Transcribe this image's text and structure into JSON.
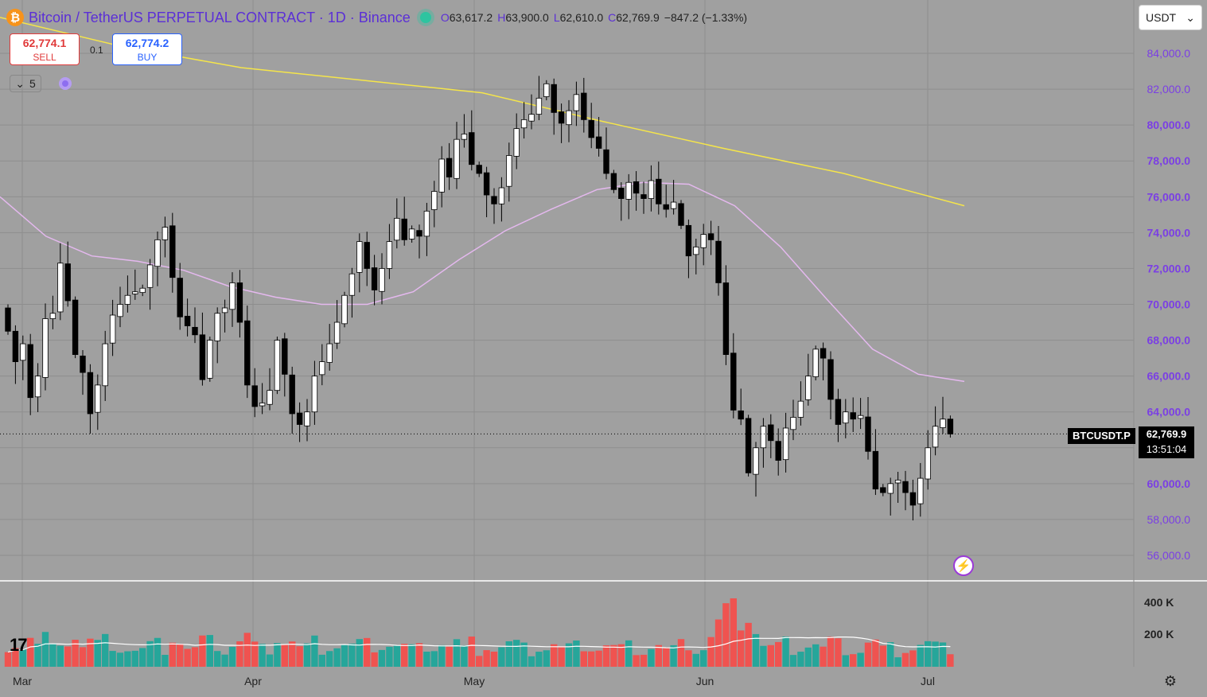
{
  "header": {
    "logo_glyph": "₿",
    "title": "Bitcoin / TetherUS PERPETUAL CONTRACT · 1D · Binance",
    "ohlc": {
      "o_label": "O",
      "o": "63,617.2",
      "h_label": "H",
      "h": "63,900.0",
      "l_label": "L",
      "l": "62,610.0",
      "c_label": "C",
      "c": "62,769.9",
      "change": "−847.2 (−1.33%)"
    }
  },
  "trade": {
    "sell_price": "62,774.1",
    "sell_label": "SELL",
    "spread": "0.1",
    "buy_price": "62,774.2",
    "buy_label": "BUY"
  },
  "indicators_toggle": {
    "chevron": "⌄",
    "count": "5"
  },
  "currency_select": {
    "value": "USDT",
    "chevron": "⌄"
  },
  "last_price": {
    "symbol": "BTCUSDT.P",
    "price": "62,769.9",
    "countdown": "13:51:04"
  },
  "flash_icon": "⚡",
  "logo": {
    "text": "17"
  },
  "settings_icon": "⚙",
  "colors": {
    "up": "#ffffff",
    "down": "#000000",
    "vol_up": "#26a69a",
    "vol_down": "#ef5350",
    "ma_long": "#f5e54a",
    "ma_mid": "#e4b8ee",
    "axis_text": "#7b3fe4"
  },
  "chart_data": {
    "type": "candlestick",
    "price_axis_labels": [
      "84,000.0",
      "82,000.0",
      "80,000.0",
      "78,000.0",
      "76,000.0",
      "74,000.0",
      "72,000.0",
      "70,000.0",
      "68,000.0",
      "66,000.0",
      "64,000.0",
      "62,000.0",
      "60,000.0",
      "58,000.0",
      "56,000.0"
    ],
    "ylim": [
      55000,
      86000
    ],
    "volume_axis_labels": [
      "400 K",
      "200 K"
    ],
    "time_axis_labels": [
      "Mar",
      "Apr",
      "May",
      "Jun",
      "Jul"
    ],
    "close": [
      68500,
      66800,
      67800,
      64800,
      66000,
      69200,
      69500,
      72300,
      70200,
      67200,
      66200,
      63900,
      65500,
      67800,
      69400,
      70000,
      70500,
      70700,
      70900,
      72200,
      73600,
      74300,
      71500,
      69300,
      68800,
      68300,
      65800,
      68000,
      69500,
      69800,
      71200,
      69000,
      65500,
      64300,
      64500,
      65200,
      68000,
      66100,
      63900,
      63300,
      64000,
      66000,
      66800,
      67800,
      69000,
      70500,
      71700,
      73500,
      72000,
      70800,
      72000,
      73500,
      74800,
      73600,
      74200,
      73800,
      75200,
      76300,
      78100,
      77100,
      79200,
      79500,
      77800,
      77300,
      76100,
      75600,
      76500,
      78300,
      79800,
      80300,
      80600,
      81500,
      82300,
      80700,
      80100,
      80800,
      81700,
      80300,
      79300,
      78700,
      77300,
      76400,
      75900,
      76800,
      76200,
      75900,
      76900,
      75600,
      75300,
      75700,
      74400,
      72700,
      73200,
      73900,
      73600,
      71200,
      67200,
      64100,
      63600,
      60600,
      62000,
      63200,
      62400,
      61300,
      63100,
      63700,
      64600,
      66000,
      67500,
      67000,
      64700,
      63300,
      64000,
      63600,
      63800,
      61800,
      59700,
      59500,
      60000,
      60200,
      59500,
      58800,
      60300,
      62000,
      63200,
      63600,
      62770
    ],
    "ma_mid_approx": [
      76000,
      73800,
      72700,
      72400,
      71900,
      71000,
      70400,
      70000,
      70000,
      70700,
      72500,
      74100,
      75300,
      76400,
      76800,
      76700,
      75500,
      73200,
      70300,
      67500,
      66100,
      65700
    ],
    "ma_long_approx": [
      86000,
      84400,
      83200,
      82500,
      81800,
      80200,
      78700,
      77300,
      75500
    ]
  }
}
